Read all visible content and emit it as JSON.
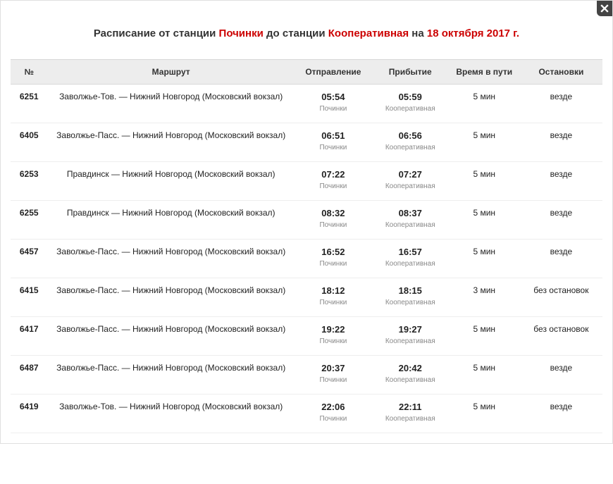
{
  "title": {
    "prefix": "Расписание от станции ",
    "from": "Починки",
    "mid": " до станции ",
    "to": "Кооперативная",
    "on": " на ",
    "date": "18 октября 2017 г."
  },
  "columns": {
    "num": "№",
    "route": "Маршрут",
    "dep": "Отправление",
    "arr": "Прибытие",
    "dur": "Время в пути",
    "stops": "Остановки"
  },
  "station_labels": {
    "from": "Починки",
    "to": "Кооперативная"
  },
  "rows": [
    {
      "num": "6251",
      "route": "Заволжье-Тов. — Нижний Новгород (Московский вокзал)",
      "dep": "05:54",
      "arr": "05:59",
      "dur": "5 мин",
      "stops": "везде"
    },
    {
      "num": "6405",
      "route": "Заволжье-Пасс. — Нижний Новгород (Московский вокзал)",
      "dep": "06:51",
      "arr": "06:56",
      "dur": "5 мин",
      "stops": "везде"
    },
    {
      "num": "6253",
      "route": "Правдинск — Нижний Новгород (Московский вокзал)",
      "dep": "07:22",
      "arr": "07:27",
      "dur": "5 мин",
      "stops": "везде"
    },
    {
      "num": "6255",
      "route": "Правдинск — Нижний Новгород (Московский вокзал)",
      "dep": "08:32",
      "arr": "08:37",
      "dur": "5 мин",
      "stops": "везде"
    },
    {
      "num": "6457",
      "route": "Заволжье-Пасс. — Нижний Новгород (Московский вокзал)",
      "dep": "16:52",
      "arr": "16:57",
      "dur": "5 мин",
      "stops": "везде"
    },
    {
      "num": "6415",
      "route": "Заволжье-Пасс. — Нижний Новгород (Московский вокзал)",
      "dep": "18:12",
      "arr": "18:15",
      "dur": "3 мин",
      "stops": "без остановок"
    },
    {
      "num": "6417",
      "route": "Заволжье-Пасс. — Нижний Новгород (Московский вокзал)",
      "dep": "19:22",
      "arr": "19:27",
      "dur": "5 мин",
      "stops": "без остановок"
    },
    {
      "num": "6487",
      "route": "Заволжье-Пасс. — Нижний Новгород (Московский вокзал)",
      "dep": "20:37",
      "arr": "20:42",
      "dur": "5 мин",
      "stops": "везде"
    },
    {
      "num": "6419",
      "route": "Заволжье-Тов. — Нижний Новгород (Московский вокзал)",
      "dep": "22:06",
      "arr": "22:11",
      "dur": "5 мин",
      "stops": "везде"
    }
  ]
}
